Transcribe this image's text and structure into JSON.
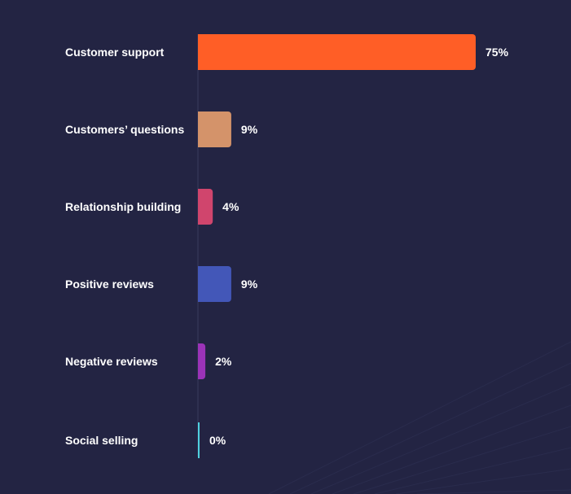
{
  "chart_data": {
    "type": "bar",
    "orientation": "horizontal",
    "categories": [
      "Customer support",
      "Customers’ questions",
      "Relationship building",
      "Positive reviews",
      "Negative reviews",
      "Social selling"
    ],
    "values": [
      75,
      9,
      4,
      9,
      2,
      0
    ],
    "value_labels": [
      "75%",
      "9%",
      "4%",
      "9%",
      "2%",
      "0%"
    ],
    "colors": [
      "#ff5e26",
      "#d4936a",
      "#d0456d",
      "#4357b8",
      "#9b33b8",
      "#4fd1e0"
    ],
    "title": "",
    "xlabel": "",
    "ylabel": "",
    "xlim": [
      0,
      75
    ],
    "grid": false,
    "legend": "none"
  },
  "theme": {
    "background": "#232443",
    "axis_color": "#3a3c5e",
    "text_color": "#ffffff"
  }
}
